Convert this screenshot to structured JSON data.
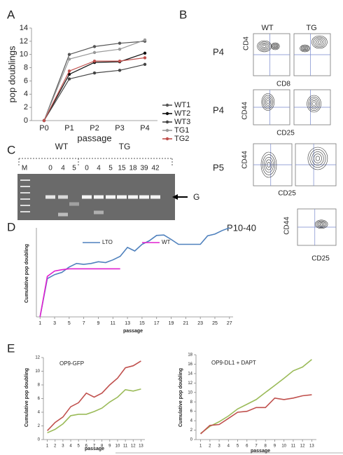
{
  "figure": {
    "panel_labels": [
      "A",
      "B",
      "C",
      "D",
      "E"
    ],
    "flow": {
      "columns": [
        "WT",
        "TG"
      ],
      "rows": [
        {
          "label": "P4",
          "y_axis": "CD4",
          "x_axis": "CD8"
        },
        {
          "label": "P4",
          "y_axis": "CD44",
          "x_axis": "CD25"
        },
        {
          "label": "P5",
          "y_axis": "CD44",
          "x_axis": "CD25"
        },
        {
          "label": "P10-40",
          "y_axis": "CD44",
          "x_axis": "CD25"
        }
      ]
    },
    "gel": {
      "marker": "M",
      "groups": [
        "WT",
        "TG"
      ],
      "lanes": [
        "0",
        "4",
        "5",
        "0",
        "4",
        "5",
        "15",
        "18",
        "39",
        "42"
      ],
      "band": "G"
    }
  },
  "chart_data": [
    {
      "type": "line",
      "y_label": "pop doublings",
      "x_label": "passage",
      "markers": true,
      "categories": [
        "P0",
        "P1",
        "P2",
        "P3",
        "P4"
      ],
      "ylim": [
        0,
        14
      ],
      "yticks": [
        0,
        2,
        4,
        6,
        8,
        10,
        12,
        14
      ],
      "series": [
        {
          "name": "WT1",
          "color": "#555555",
          "values": [
            0,
            10,
            11.2,
            11.7,
            12
          ]
        },
        {
          "name": "WT2",
          "color": "#111111",
          "values": [
            0,
            7,
            8.8,
            8.9,
            10.2
          ]
        },
        {
          "name": "WT3",
          "color": "#444444",
          "values": [
            0,
            6.3,
            7.2,
            7.6,
            8.5
          ]
        },
        {
          "name": "TG1",
          "color": "#999999",
          "values": [
            0,
            9.3,
            10.3,
            10.8,
            12.2
          ]
        },
        {
          "name": "TG2",
          "color": "#c0504d",
          "values": [
            0,
            7.5,
            9,
            9,
            9.5
          ]
        }
      ]
    },
    {
      "type": "line",
      "y_label": "Cumulative pop doubling",
      "x_label": "passage",
      "x": [
        1,
        2,
        3,
        4,
        5,
        6,
        7,
        8,
        9,
        10,
        11,
        12,
        13,
        14,
        15,
        16,
        17,
        18,
        19,
        20,
        21,
        22,
        23,
        24,
        25,
        26,
        27
      ],
      "xlim": [
        0.5,
        27.5
      ],
      "xticks": [
        1,
        3,
        5,
        7,
        9,
        11,
        13,
        15,
        17,
        19,
        21,
        23,
        25,
        27
      ],
      "ylim": [
        0,
        20
      ],
      "series": [
        {
          "name": "LTO",
          "color": "#4f81bd",
          "values": [
            0,
            8.6,
            9.5,
            10,
            11.2,
            12,
            11.8,
            12,
            12.4,
            12.2,
            12.8,
            13.6,
            15.6,
            14.8,
            16.3,
            17.1,
            18.3,
            18.4,
            17.4,
            16.3,
            16.3,
            16.3,
            16.3,
            18.2,
            18.6,
            19.4,
            20
          ]
        },
        {
          "name": "WT",
          "color": "#e020d0",
          "values": [
            0,
            9.1,
            10.3,
            10.6,
            10.8,
            10.8,
            10.8,
            10.8,
            10.8,
            10.8,
            10.8,
            10.8,
            null,
            null,
            null,
            null,
            null,
            null,
            null,
            null,
            null,
            null,
            null,
            null,
            null,
            null,
            null
          ]
        }
      ]
    },
    {
      "type": "line",
      "title": "OP9-GFP",
      "y_label": "Cumulative pop doubling",
      "x_label": "passage",
      "x": [
        1,
        2,
        3,
        4,
        5,
        6,
        7,
        8,
        9,
        10,
        11,
        12,
        13
      ],
      "xlim": [
        0.5,
        13.5
      ],
      "xticks": [
        1,
        2,
        3,
        4,
        5,
        6,
        7,
        8,
        9,
        10,
        11,
        12,
        13
      ],
      "ylim": [
        0,
        12
      ],
      "yticks": [
        0,
        2,
        4,
        6,
        8,
        10,
        12
      ],
      "series": [
        {
          "color": "#c0504d",
          "values": [
            1.3,
            2.5,
            3.3,
            4.8,
            5.4,
            6.8,
            6.2,
            6.8,
            8,
            9,
            10.5,
            10.8,
            11.5
          ]
        },
        {
          "color": "#9bbb59",
          "values": [
            1,
            1.5,
            2.3,
            3.5,
            3.7,
            3.7,
            4.1,
            4.6,
            5.5,
            6.2,
            7.3,
            7.1,
            7.4
          ]
        }
      ]
    },
    {
      "type": "line",
      "title": "OP9-DL1 + DAPT",
      "y_label": "Cumulative pop doubling",
      "x_label": "passage",
      "x": [
        1,
        2,
        3,
        4,
        5,
        6,
        7,
        8,
        9,
        10,
        11,
        12,
        13
      ],
      "xlim": [
        0.5,
        13.5
      ],
      "xticks": [
        1,
        2,
        3,
        4,
        5,
        6,
        7,
        8,
        9,
        10,
        11,
        12,
        13
      ],
      "ylim": [
        0,
        18
      ],
      "yticks": [
        0,
        2,
        4,
        6,
        8,
        10,
        12,
        14,
        16,
        18
      ],
      "series": [
        {
          "color": "#9bbb59",
          "values": [
            1.3,
            2.8,
            3.8,
            5,
            6.5,
            7.5,
            8.5,
            10,
            11.5,
            13,
            14.6,
            15.4,
            17
          ]
        },
        {
          "color": "#c0504d",
          "values": [
            1.2,
            3,
            3.2,
            4.5,
            5.8,
            6,
            6.8,
            6.8,
            8.8,
            8.5,
            8.8,
            9.3,
            9.5
          ]
        }
      ]
    }
  ]
}
